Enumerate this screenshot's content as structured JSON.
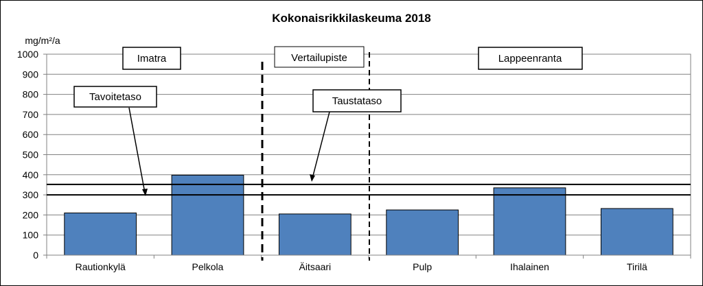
{
  "chart_data": {
    "type": "bar",
    "title": "Kokonaisrikkilaskeuma 2018",
    "ylabel": "mg/m²/a",
    "xlabel": "",
    "ylim": [
      0,
      1000
    ],
    "yticks": [
      0,
      100,
      200,
      300,
      400,
      500,
      600,
      700,
      800,
      900,
      1000
    ],
    "categories": [
      "Rautionkylä",
      "Pelkola",
      "Äitsaari",
      "Pulp",
      "Ihalainen",
      "Tirilä"
    ],
    "values": [
      210,
      398,
      205,
      225,
      335,
      232
    ],
    "bar_color": "#4f81bd",
    "grid": true,
    "reference_lines": [
      {
        "label": "Tavoitetaso",
        "value": 300
      },
      {
        "label": "Taustataso",
        "value": 352
      }
    ],
    "groups": [
      {
        "label": "Imatra"
      },
      {
        "label": "Vertailupiste"
      },
      {
        "label": "Lappeenranta"
      }
    ]
  }
}
